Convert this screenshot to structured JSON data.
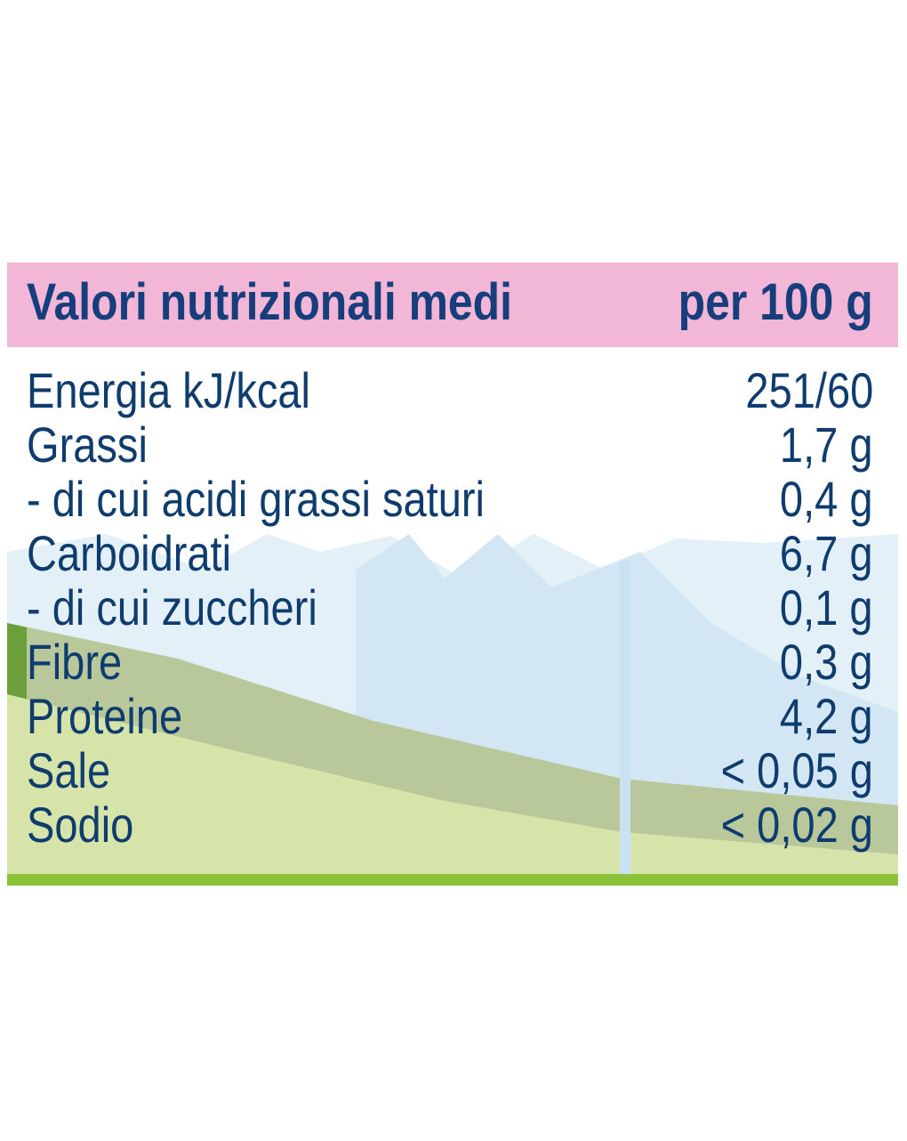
{
  "table": {
    "header": {
      "label": "Valori nutrizionali medi",
      "unit": "per 100 g"
    },
    "rows": [
      {
        "label": "Energia kJ/kcal",
        "value": "251/60"
      },
      {
        "label": "Grassi",
        "value": "1,7 g"
      },
      {
        "label": "- di cui acidi grassi saturi",
        "value": "0,4 g"
      },
      {
        "label": "Carboidrati",
        "value": "6,7 g"
      },
      {
        "label": "- di cui zuccheri",
        "value": "0,1 g"
      },
      {
        "label": "Fibre",
        "value": "0,3 g"
      },
      {
        "label": "Proteine",
        "value": "4,2 g"
      },
      {
        "label": "Sale",
        "value": "< 0,05 g"
      },
      {
        "label": "Sodio",
        "value": "< 0,02 g"
      }
    ]
  },
  "colors": {
    "header_bg": "#f2b6d6",
    "text": "#0f3c6e",
    "sky": "#e3f0f8",
    "hill": "#b9c89a",
    "meadow": "#d7e4a9",
    "bottom_bar": "#8bc23a"
  }
}
